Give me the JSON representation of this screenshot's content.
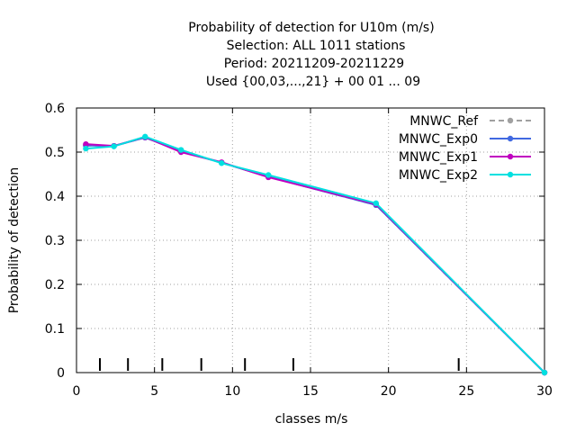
{
  "chart_data": {
    "type": "line",
    "title_lines": [
      "Probability of detection  for U10m (m/s)",
      "Selection: ALL    1011 stations",
      "Period: 20211209-20211229",
      "Used {00,03,...,21} + 00 01 ... 09"
    ],
    "xlabel": "classes m/s",
    "ylabel": "Probability of detection",
    "xlim": [
      0,
      30
    ],
    "ylim": [
      0,
      0.6
    ],
    "x_ticks": [
      "0",
      "5",
      "10",
      "15",
      "20",
      "25",
      "30"
    ],
    "y_ticks": [
      "0",
      "0.1",
      "0.2",
      "0.3",
      "0.4",
      "0.5",
      "0.6"
    ],
    "grid": true,
    "legend_position": "top-right",
    "rug_marks_x": [
      1.5,
      3.3,
      5.5,
      8.0,
      10.8,
      13.9,
      24.5
    ],
    "series": [
      {
        "name": "MNWC_Ref",
        "color": "#a0a0a0",
        "dashed": true,
        "x": [
          0.6,
          2.4,
          4.4,
          6.7,
          9.3,
          12.3,
          19.2,
          30.0
        ],
        "y": [
          0.515,
          0.514,
          0.533,
          0.502,
          0.476,
          0.444,
          0.38,
          0.0
        ]
      },
      {
        "name": "MNWC_Exp0",
        "color": "#4169e1",
        "dashed": false,
        "x": [
          0.6,
          2.4,
          4.4,
          6.7,
          9.3,
          12.3,
          19.2,
          30.0
        ],
        "y": [
          0.515,
          0.514,
          0.533,
          0.502,
          0.476,
          0.444,
          0.38,
          0.0
        ]
      },
      {
        "name": "MNWC_Exp1",
        "color": "#c000c0",
        "dashed": false,
        "x": [
          0.6,
          2.4,
          4.4,
          6.7,
          9.3,
          12.3,
          19.2,
          30.0
        ],
        "y": [
          0.518,
          0.514,
          0.534,
          0.5,
          0.477,
          0.443,
          0.382,
          0.0
        ]
      },
      {
        "name": "MNWC_Exp2",
        "color": "#00e0e0",
        "dashed": false,
        "x": [
          0.6,
          2.4,
          4.4,
          6.7,
          9.3,
          12.3,
          19.2,
          30.0
        ],
        "y": [
          0.508,
          0.513,
          0.535,
          0.505,
          0.475,
          0.448,
          0.384,
          0.0
        ]
      }
    ]
  }
}
